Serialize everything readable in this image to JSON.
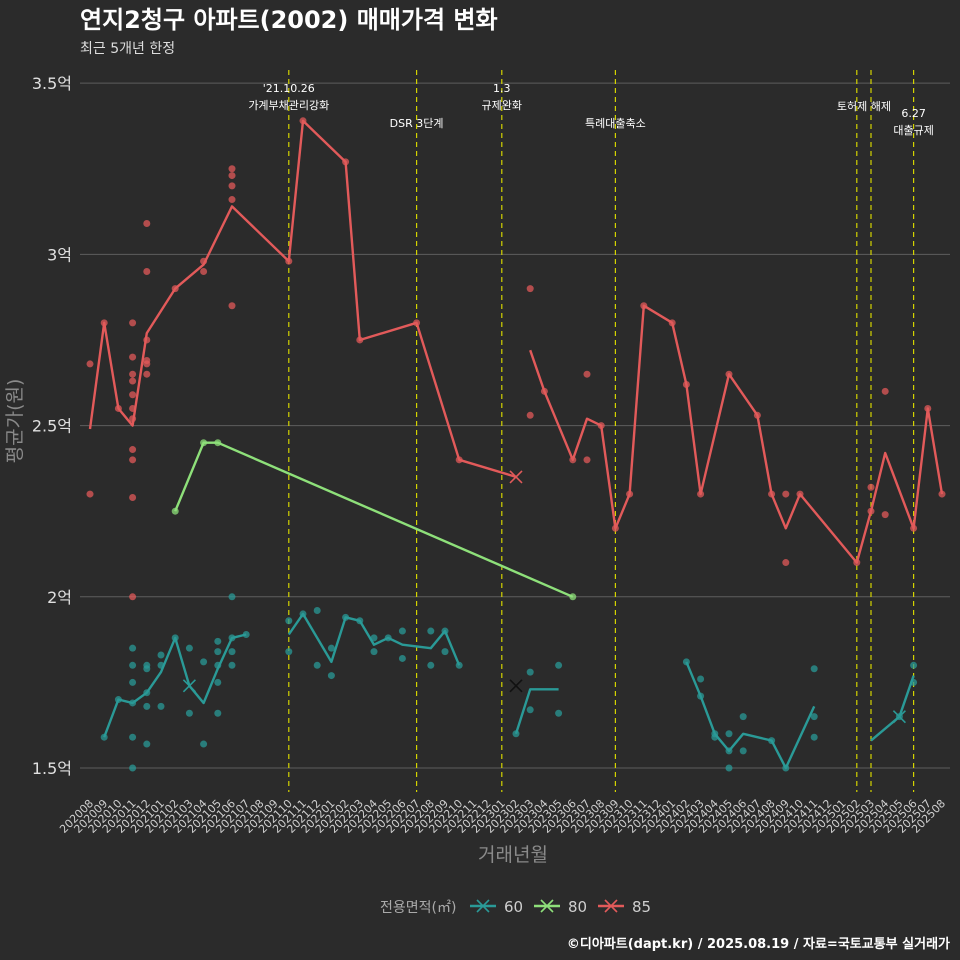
{
  "chart_data": {
    "type": "line",
    "title": "연지2청구 아파트(2002) 매매가격 변화",
    "subtitle": "최근 5개년 한정",
    "xlabel": "거래년월",
    "ylabel": "평균가(원)",
    "ylim": [
      1.43,
      3.55
    ],
    "y_ticks": [
      {
        "value": 1.5,
        "label": "1.5억"
      },
      {
        "value": 2.0,
        "label": "2억"
      },
      {
        "value": 2.5,
        "label": "2.5억"
      },
      {
        "value": 3.0,
        "label": "3억"
      },
      {
        "value": 3.5,
        "label": "3.5억"
      }
    ],
    "x_categories": [
      "202008",
      "202009",
      "202010",
      "202011",
      "202012",
      "202101",
      "202102",
      "202103",
      "202104",
      "202105",
      "202106",
      "202107",
      "202108",
      "202109",
      "202110",
      "202111",
      "202112",
      "202201",
      "202202",
      "202203",
      "202204",
      "202205",
      "202206",
      "202207",
      "202208",
      "202209",
      "202210",
      "202211",
      "202212",
      "202301",
      "202302",
      "202303",
      "202304",
      "202305",
      "202306",
      "202307",
      "202308",
      "202309",
      "202310",
      "202311",
      "202312",
      "202401",
      "202402",
      "202403",
      "202404",
      "202405",
      "202406",
      "202407",
      "202408",
      "202409",
      "202410",
      "202411",
      "202412",
      "202501",
      "202502",
      "202503",
      "202504",
      "202505",
      "202506",
      "202507",
      "202508"
    ],
    "grid": true,
    "legend": {
      "title": "전용면적(㎡)",
      "position": "bottom"
    },
    "series": [
      {
        "name": "60",
        "color": "#2a9a97",
        "lines": [
          [
            [
              "202009",
              1.59
            ],
            [
              "202010",
              1.7
            ],
            [
              "202011",
              1.69
            ],
            [
              "202012",
              1.72
            ],
            [
              "202101",
              1.78
            ],
            [
              "202102",
              1.88
            ],
            [
              "202103",
              1.74
            ],
            [
              "202104",
              1.69
            ],
            [
              "202105",
              1.79
            ],
            [
              "202106",
              1.88
            ],
            [
              "202107",
              1.89
            ]
          ],
          [
            [
              "202110",
              1.89
            ],
            [
              "202111",
              1.95
            ],
            [
              "202112",
              1.88
            ],
            [
              "202201",
              1.81
            ],
            [
              "202202",
              1.94
            ],
            [
              "202203",
              1.93
            ],
            [
              "202204",
              1.86
            ],
            [
              "202205",
              1.88
            ],
            [
              "202206",
              1.86
            ],
            [
              "202208",
              1.85
            ],
            [
              "202209",
              1.9
            ],
            [
              "202210",
              1.8
            ]
          ],
          [
            [
              "202302",
              1.6
            ],
            [
              "202303",
              1.73
            ],
            [
              "202305",
              1.73
            ]
          ],
          [
            [
              "202402",
              1.81
            ],
            [
              "202403",
              1.71
            ],
            [
              "202404",
              1.6
            ],
            [
              "202405",
              1.55
            ],
            [
              "202406",
              1.6
            ],
            [
              "202408",
              1.58
            ],
            [
              "202409",
              1.5
            ],
            [
              "202411",
              1.68
            ]
          ],
          [
            [
              "202503",
              1.58
            ],
            [
              "202505",
              1.65
            ],
            [
              "202506",
              1.77
            ]
          ]
        ],
        "points": [
          [
            "202009",
            1.59
          ],
          [
            "202010",
            1.7
          ],
          [
            "202011",
            1.85
          ],
          [
            "202011",
            1.8
          ],
          [
            "202011",
            1.75
          ],
          [
            "202011",
            1.69
          ],
          [
            "202011",
            1.59
          ],
          [
            "202011",
            1.5
          ],
          [
            "202012",
            1.8
          ],
          [
            "202012",
            1.79
          ],
          [
            "202012",
            1.72
          ],
          [
            "202012",
            1.68
          ],
          [
            "202012",
            1.57
          ],
          [
            "202101",
            1.83
          ],
          [
            "202101",
            1.8
          ],
          [
            "202101",
            1.68
          ],
          [
            "202102",
            1.88
          ],
          [
            "202103",
            1.85
          ],
          [
            "202103",
            1.66
          ],
          [
            "202104",
            1.81
          ],
          [
            "202104",
            1.57
          ],
          [
            "202105",
            1.87
          ],
          [
            "202105",
            1.84
          ],
          [
            "202105",
            1.8
          ],
          [
            "202105",
            1.75
          ],
          [
            "202105",
            1.66
          ],
          [
            "202106",
            2.0
          ],
          [
            "202106",
            1.88
          ],
          [
            "202106",
            1.84
          ],
          [
            "202106",
            1.8
          ],
          [
            "202107",
            1.89
          ],
          [
            "202110",
            1.93
          ],
          [
            "202110",
            1.84
          ],
          [
            "202111",
            1.95
          ],
          [
            "202112",
            1.96
          ],
          [
            "202112",
            1.8
          ],
          [
            "202201",
            1.85
          ],
          [
            "202201",
            1.77
          ],
          [
            "202202",
            1.94
          ],
          [
            "202203",
            1.93
          ],
          [
            "202204",
            1.88
          ],
          [
            "202204",
            1.84
          ],
          [
            "202205",
            1.88
          ],
          [
            "202206",
            1.9
          ],
          [
            "202206",
            1.82
          ],
          [
            "202208",
            1.9
          ],
          [
            "202208",
            1.8
          ],
          [
            "202209",
            1.9
          ],
          [
            "202209",
            1.84
          ],
          [
            "202210",
            1.8
          ],
          [
            "202302",
            1.6
          ],
          [
            "202303",
            1.78
          ],
          [
            "202303",
            1.67
          ],
          [
            "202305",
            1.8
          ],
          [
            "202305",
            1.66
          ],
          [
            "202402",
            1.81
          ],
          [
            "202403",
            1.76
          ],
          [
            "202403",
            1.71
          ],
          [
            "202404",
            1.6
          ],
          [
            "202404",
            1.59
          ],
          [
            "202405",
            1.6
          ],
          [
            "202405",
            1.55
          ],
          [
            "202405",
            1.5
          ],
          [
            "202406",
            1.65
          ],
          [
            "202406",
            1.55
          ],
          [
            "202408",
            1.58
          ],
          [
            "202409",
            1.5
          ],
          [
            "202411",
            1.79
          ],
          [
            "202411",
            1.65
          ],
          [
            "202411",
            1.59
          ],
          [
            "202505",
            1.65
          ],
          [
            "202506",
            1.8
          ],
          [
            "202506",
            1.75
          ]
        ],
        "x_marks": [
          [
            "202103",
            1.74
          ],
          [
            "202302",
            1.74
          ],
          [
            "202505",
            1.65
          ]
        ]
      },
      {
        "name": "80",
        "color": "#8ee07a",
        "lines": [
          [
            [
              "202102",
              2.25
            ],
            [
              "202104",
              2.45
            ],
            [
              "202105",
              2.45
            ],
            [
              "202306",
              2.0
            ]
          ]
        ],
        "points": [
          [
            "202102",
            2.25
          ],
          [
            "202104",
            2.45
          ],
          [
            "202105",
            2.45
          ],
          [
            "202306",
            2.0
          ]
        ],
        "x_marks": []
      },
      {
        "name": "85",
        "color": "#e25a5a",
        "lines": [
          [
            [
              "202008",
              2.49
            ],
            [
              "202009",
              2.8
            ],
            [
              "202010",
              2.55
            ],
            [
              "202011",
              2.5
            ],
            [
              "202012",
              2.77
            ],
            [
              "202102",
              2.9
            ],
            [
              "202104",
              2.97
            ],
            [
              "202106",
              3.14
            ],
            [
              "202110",
              2.98
            ],
            [
              "202111",
              3.39
            ],
            [
              "202202",
              3.27
            ],
            [
              "202203",
              2.75
            ],
            [
              "202207",
              2.8
            ],
            [
              "202210",
              2.4
            ],
            [
              "202302",
              2.35
            ]
          ],
          [
            [
              "202303",
              2.72
            ],
            [
              "202304",
              2.6
            ],
            [
              "202306",
              2.4
            ],
            [
              "202307",
              2.52
            ],
            [
              "202308",
              2.5
            ],
            [
              "202309",
              2.2
            ],
            [
              "202310",
              2.3
            ],
            [
              "202311",
              2.85
            ],
            [
              "202401",
              2.8
            ],
            [
              "202402",
              2.62
            ],
            [
              "202403",
              2.3
            ],
            [
              "202405",
              2.65
            ],
            [
              "202407",
              2.53
            ],
            [
              "202408",
              2.3
            ],
            [
              "202409",
              2.2
            ],
            [
              "202410",
              2.3
            ],
            [
              "202502",
              2.1
            ],
            [
              "202503",
              2.25
            ],
            [
              "202504",
              2.42
            ],
            [
              "202506",
              2.2
            ],
            [
              "202507",
              2.55
            ],
            [
              "202508",
              2.3
            ]
          ]
        ],
        "points": [
          [
            "202008",
            2.68
          ],
          [
            "202008",
            2.3
          ],
          [
            "202009",
            2.8
          ],
          [
            "202010",
            2.55
          ],
          [
            "202011",
            2.8
          ],
          [
            "202011",
            2.7
          ],
          [
            "202011",
            2.65
          ],
          [
            "202011",
            2.63
          ],
          [
            "202011",
            2.59
          ],
          [
            "202011",
            2.55
          ],
          [
            "202011",
            2.52
          ],
          [
            "202011",
            2.43
          ],
          [
            "202011",
            2.4
          ],
          [
            "202011",
            2.29
          ],
          [
            "202011",
            2.0
          ],
          [
            "202012",
            3.09
          ],
          [
            "202012",
            2.95
          ],
          [
            "202012",
            2.75
          ],
          [
            "202012",
            2.69
          ],
          [
            "202012",
            2.68
          ],
          [
            "202012",
            2.65
          ],
          [
            "202102",
            2.9
          ],
          [
            "202104",
            2.98
          ],
          [
            "202104",
            2.95
          ],
          [
            "202106",
            3.25
          ],
          [
            "202106",
            3.23
          ],
          [
            "202106",
            3.2
          ],
          [
            "202106",
            3.16
          ],
          [
            "202106",
            2.85
          ],
          [
            "202110",
            2.98
          ],
          [
            "202111",
            3.39
          ],
          [
            "202202",
            3.27
          ],
          [
            "202203",
            2.75
          ],
          [
            "202207",
            2.8
          ],
          [
            "202210",
            2.4
          ],
          [
            "202303",
            2.9
          ],
          [
            "202303",
            2.53
          ],
          [
            "202304",
            2.6
          ],
          [
            "202306",
            2.4
          ],
          [
            "202307",
            2.65
          ],
          [
            "202307",
            2.4
          ],
          [
            "202308",
            2.5
          ],
          [
            "202309",
            2.2
          ],
          [
            "202310",
            2.3
          ],
          [
            "202311",
            2.85
          ],
          [
            "202401",
            2.8
          ],
          [
            "202402",
            2.62
          ],
          [
            "202403",
            2.3
          ],
          [
            "202405",
            2.65
          ],
          [
            "202407",
            2.53
          ],
          [
            "202408",
            2.3
          ],
          [
            "202409",
            2.3
          ],
          [
            "202409",
            2.1
          ],
          [
            "202410",
            2.3
          ],
          [
            "202502",
            2.1
          ],
          [
            "202503",
            2.32
          ],
          [
            "202503",
            2.25
          ],
          [
            "202504",
            2.6
          ],
          [
            "202504",
            2.24
          ],
          [
            "202506",
            2.2
          ],
          [
            "202507",
            2.55
          ],
          [
            "202508",
            2.3
          ]
        ],
        "x_marks": [
          [
            "202302",
            2.35
          ]
        ]
      }
    ],
    "annotations": [
      {
        "x": "202110",
        "lines": [
          "'21.10.26",
          "가계부채관리강화"
        ],
        "row": 0
      },
      {
        "x": "202207",
        "lines": [
          "DSR 3단계"
        ],
        "row": 2
      },
      {
        "x": "202301",
        "lines": [
          "1.3",
          "규제완화"
        ],
        "row": 0
      },
      {
        "x": "202309",
        "lines": [
          "특례대출축소"
        ],
        "row": 2
      },
      {
        "x": "202502",
        "lines": [
          "토허제 해제"
        ],
        "row": 1,
        "anchor_x": "202503"
      },
      {
        "x": "202503",
        "lines": [],
        "row": 1
      },
      {
        "x": "202506",
        "lines": [
          "6.27",
          "대출규제"
        ],
        "row": 3
      }
    ],
    "caption": "©디아파트(dapt.kr) / 2025.08.19 / 자료=국토교통부 실거래가"
  }
}
